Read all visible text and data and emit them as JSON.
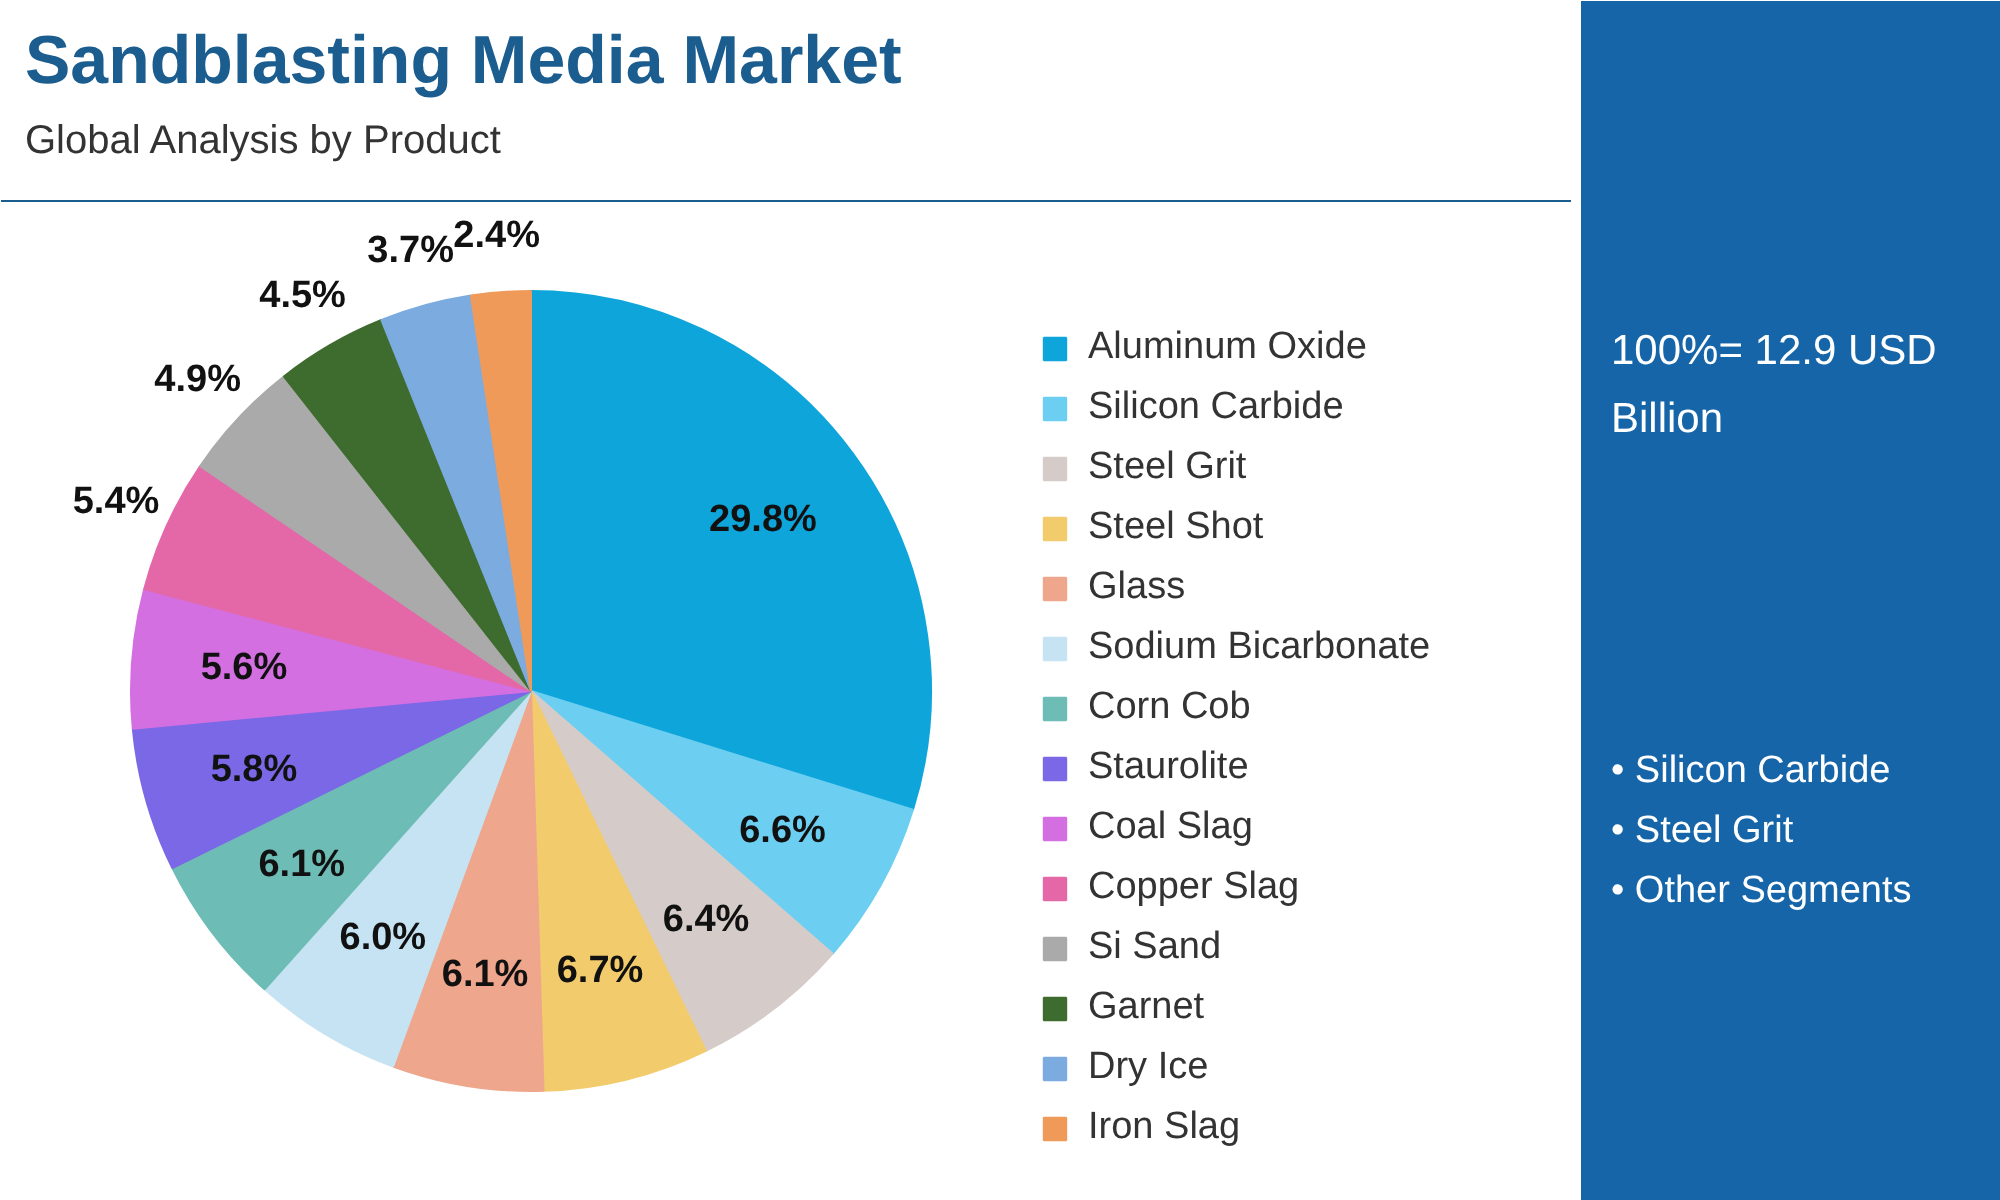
{
  "chart_data": {
    "type": "pie",
    "title": "Sandblasting Media Market",
    "subtitle": "Global Analysis by Product",
    "categories": [
      "Aluminum Oxide",
      "Silicon Carbide",
      "Steel Grit",
      "Steel Shot",
      "Glass",
      "Sodium Bicarbonate",
      "Corn Cob",
      "Staurolite",
      "Coal Slag",
      "Copper Slag",
      "Si Sand",
      "Garnet",
      "Dry Ice",
      "Iron Slag"
    ],
    "values": [
      29.8,
      6.6,
      6.4,
      6.7,
      6.1,
      6.0,
      6.1,
      5.8,
      5.6,
      5.4,
      4.9,
      4.5,
      3.7,
      2.4
    ],
    "value_labels": [
      "29.8%",
      "6.6%",
      "6.4%",
      "6.7%",
      "6.1%",
      "6.0%",
      "6.1%",
      "5.8%",
      "5.6%",
      "5.4%",
      "4.9%",
      "4.5%",
      "3.7%",
      "2.4%"
    ],
    "colors": [
      "#0ea5db",
      "#6ccff2",
      "#d5ccc9",
      "#f2cb6c",
      "#eea68c",
      "#c5e3f2",
      "#6dbcb5",
      "#7b68e6",
      "#d36fe0",
      "#e468a8",
      "#aaaaaa",
      "#3e6b2e",
      "#7cabdf",
      "#f09a5a"
    ],
    "legend": "right",
    "annotations": [
      "100%= 12.9 USD Billion",
      "• Silicon Carbide",
      "• Steel Grit",
      "• Other Segments"
    ]
  }
}
